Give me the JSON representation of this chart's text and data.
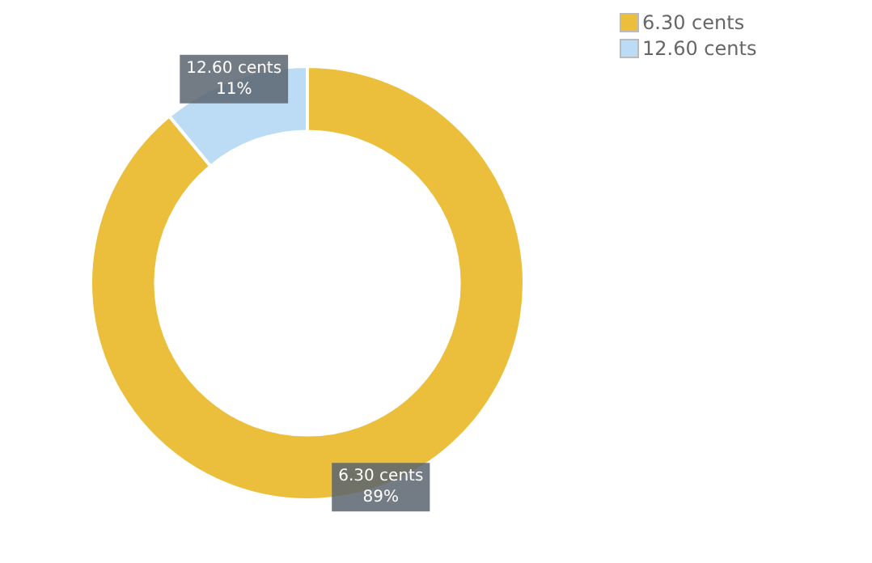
{
  "chart_data": {
    "type": "donut",
    "categories": [
      "6.30 cents",
      "12.60 cents"
    ],
    "values": [
      89,
      11
    ],
    "colors": [
      "#ebbf3c",
      "#bcdcf5"
    ],
    "value_labels": [
      "89%",
      "11%"
    ],
    "legend": "top right"
  }
}
